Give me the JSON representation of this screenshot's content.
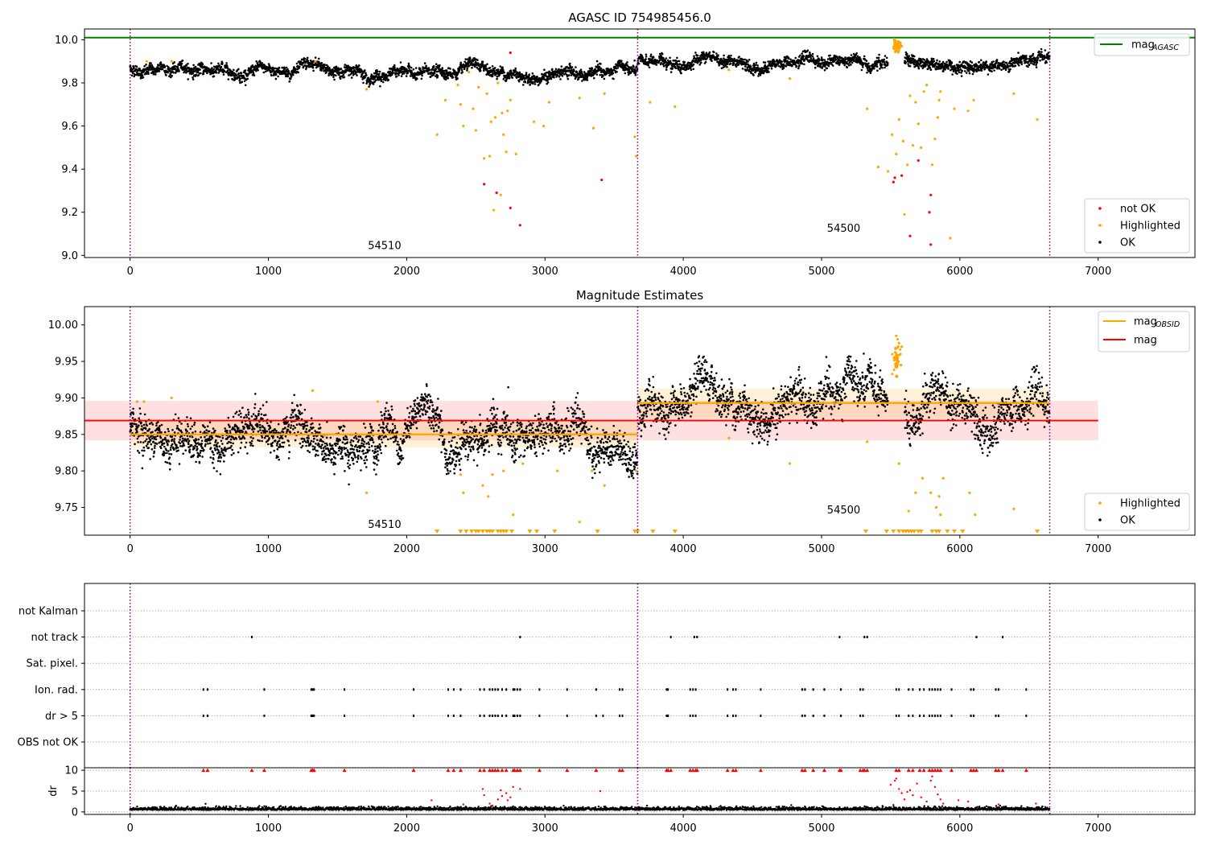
{
  "chart_data": [
    {
      "type": "scatter",
      "title": "AGASC ID 754985456.0",
      "xlabel": "",
      "ylabel": "",
      "xlim": [
        -330,
        7700
      ],
      "ylim": [
        8.99,
        10.05
      ],
      "xticks": [
        "0",
        "1000",
        "2000",
        "3000",
        "4000",
        "5000",
        "6000",
        "7000"
      ],
      "yticks": [
        "9.0",
        "9.2",
        "9.4",
        "9.6",
        "9.8",
        "10.0"
      ],
      "ytick_values": [
        9.0,
        9.2,
        9.4,
        9.6,
        9.8,
        10.0
      ],
      "vlines": [
        0,
        3670,
        6650
      ],
      "mag_agasc": 10.01,
      "obsid_labels": [
        {
          "text": "54510",
          "x": 1840,
          "y": 9.03
        },
        {
          "text": "54500",
          "x": 5160,
          "y": 9.11
        }
      ],
      "segments": [
        {
          "x0": 0,
          "x1": 3670,
          "start": 9.865,
          "end": 9.835,
          "sd": 0.012
        },
        {
          "x0": 3670,
          "x1": 6650,
          "start": 9.9,
          "end": 9.885,
          "sd": 0.012
        }
      ],
      "bumps": [
        {
          "x": 5540,
          "width": 60,
          "height": 0.08
        }
      ],
      "highlighted": [
        [
          2220,
          9.56
        ],
        [
          2280,
          9.72
        ],
        [
          2370,
          9.79
        ],
        [
          2390,
          9.7
        ],
        [
          2410,
          9.6
        ],
        [
          2450,
          9.85
        ],
        [
          2480,
          9.68
        ],
        [
          2500,
          9.58
        ],
        [
          2520,
          9.78
        ],
        [
          2560,
          9.45
        ],
        [
          2580,
          9.75
        ],
        [
          2600,
          9.46
        ],
        [
          2610,
          9.62
        ],
        [
          2630,
          9.21
        ],
        [
          2640,
          9.64
        ],
        [
          2660,
          9.8
        ],
        [
          2680,
          9.28
        ],
        [
          2690,
          9.66
        ],
        [
          2700,
          9.56
        ],
        [
          2720,
          9.48
        ],
        [
          2730,
          9.67
        ],
        [
          2750,
          9.72
        ],
        [
          2790,
          9.47
        ],
        [
          2920,
          9.62
        ],
        [
          2990,
          9.6
        ],
        [
          3030,
          9.71
        ],
        [
          3250,
          9.73
        ],
        [
          3350,
          9.59
        ],
        [
          3430,
          9.75
        ],
        [
          3650,
          9.55
        ],
        [
          3660,
          9.46
        ],
        [
          3760,
          9.71
        ],
        [
          3940,
          9.69
        ],
        [
          4330,
          9.86
        ],
        [
          4770,
          9.82
        ],
        [
          5330,
          9.68
        ],
        [
          5410,
          9.41
        ],
        [
          5480,
          9.39
        ],
        [
          5510,
          9.56
        ],
        [
          5540,
          9.47
        ],
        [
          5560,
          9.63
        ],
        [
          5590,
          9.53
        ],
        [
          5600,
          9.19
        ],
        [
          5620,
          9.42
        ],
        [
          5640,
          9.74
        ],
        [
          5660,
          9.51
        ],
        [
          5680,
          9.71
        ],
        [
          5700,
          9.61
        ],
        [
          5720,
          9.5
        ],
        [
          5740,
          9.76
        ],
        [
          5760,
          9.79
        ],
        [
          5800,
          9.42
        ],
        [
          5820,
          9.54
        ],
        [
          5840,
          9.64
        ],
        [
          5850,
          9.72
        ],
        [
          5860,
          9.76
        ],
        [
          5930,
          9.08
        ],
        [
          5960,
          9.68
        ],
        [
          6060,
          9.67
        ],
        [
          6100,
          9.72
        ],
        [
          6390,
          9.75
        ],
        [
          6560,
          9.63
        ],
        [
          1710,
          9.77
        ],
        [
          1340,
          9.9
        ],
        [
          300,
          9.9
        ],
        [
          120,
          9.9
        ],
        [
          5560,
          9.97
        ],
        [
          5570,
          9.98
        ],
        [
          5545,
          9.96
        ],
        [
          5580,
          9.97
        ]
      ],
      "not_ok": [
        [
          2560,
          9.33
        ],
        [
          2650,
          9.29
        ],
        [
          2750,
          9.22
        ],
        [
          2820,
          9.14
        ],
        [
          3410,
          9.35
        ],
        [
          5520,
          9.34
        ],
        [
          5530,
          9.36
        ],
        [
          5580,
          9.37
        ],
        [
          5640,
          9.09
        ],
        [
          5700,
          9.44
        ],
        [
          5780,
          9.2
        ],
        [
          5790,
          9.28
        ],
        [
          5790,
          9.05
        ],
        [
          2750,
          9.94
        ]
      ],
      "legend": [
        {
          "label": "mag",
          "sub": "AGASC",
          "style": "line",
          "color": "#008000"
        }
      ],
      "legend2": [
        {
          "label": "not OK",
          "color": "#ff0000"
        },
        {
          "label": "Highlighted",
          "color": "#ffa500"
        },
        {
          "label": "OK",
          "color": "#000000"
        }
      ]
    },
    {
      "type": "scatter",
      "title": "Magnitude Estimates",
      "xlabel": "",
      "ylabel": "",
      "xlim": [
        -330,
        7700
      ],
      "ylim": [
        9.712,
        10.025
      ],
      "xticks": [
        "0",
        "1000",
        "2000",
        "3000",
        "4000",
        "5000",
        "6000",
        "7000"
      ],
      "yticks": [
        "9.75",
        "9.80",
        "9.85",
        "9.90",
        "9.95",
        "10.00"
      ],
      "ytick_values": [
        9.75,
        9.8,
        9.85,
        9.9,
        9.95,
        10.0
      ],
      "vlines": [
        0,
        3670,
        6650
      ],
      "mag": 9.869,
      "mag_band": [
        9.842,
        9.896
      ],
      "mag_band_x": [
        -330,
        7000
      ],
      "mag_obsid": [
        {
          "x0": 0,
          "x1": 3670,
          "value": 9.85,
          "band": [
            9.832,
            9.868
          ]
        },
        {
          "x0": 3670,
          "x1": 6650,
          "value": 9.893,
          "band": [
            9.873,
            9.913
          ]
        }
      ],
      "obsid_labels": [
        {
          "text": "54510",
          "x": 1840,
          "y": 9.722
        },
        {
          "text": "54500",
          "x": 5160,
          "y": 9.742
        }
      ],
      "segments": [
        {
          "x0": 0,
          "x1": 3670,
          "start": 9.86,
          "end": 9.835,
          "sd": 0.012
        },
        {
          "x0": 3670,
          "x1": 6650,
          "start": 9.893,
          "end": 9.885,
          "sd": 0.013
        }
      ],
      "bumps": [
        {
          "x": 5540,
          "width": 60,
          "height": 0.07
        }
      ],
      "highlighted": [
        [
          1710,
          9.77
        ],
        [
          2390,
          9.795
        ],
        [
          2410,
          9.77
        ],
        [
          2550,
          9.78
        ],
        [
          2590,
          9.765
        ],
        [
          2620,
          9.795
        ],
        [
          2700,
          9.8
        ],
        [
          2770,
          9.74
        ],
        [
          2840,
          9.81
        ],
        [
          3090,
          9.8
        ],
        [
          3250,
          9.73
        ],
        [
          3340,
          9.8
        ],
        [
          3430,
          9.78
        ],
        [
          3660,
          9.8
        ],
        [
          4770,
          9.81
        ],
        [
          5560,
          9.81
        ],
        [
          5630,
          9.745
        ],
        [
          5680,
          9.77
        ],
        [
          5730,
          9.79
        ],
        [
          5790,
          9.77
        ],
        [
          5830,
          9.75
        ],
        [
          5850,
          9.765
        ],
        [
          5860,
          9.74
        ],
        [
          5880,
          9.79
        ],
        [
          6070,
          9.77
        ],
        [
          6110,
          9.74
        ],
        [
          6390,
          9.748
        ],
        [
          300,
          9.9
        ],
        [
          1320,
          9.91
        ],
        [
          1790,
          9.895
        ],
        [
          50,
          9.895
        ],
        [
          100,
          9.895
        ],
        [
          5540,
          9.985
        ],
        [
          5560,
          9.975
        ],
        [
          5570,
          9.96
        ],
        [
          5580,
          9.97
        ],
        [
          5550,
          9.95
        ],
        [
          5575,
          9.945
        ],
        [
          5330,
          9.84
        ],
        [
          4330,
          9.845
        ]
      ],
      "lower_limits": [
        2220,
        2390,
        2430,
        2470,
        2500,
        2520,
        2550,
        2580,
        2600,
        2620,
        2660,
        2680,
        2700,
        2720,
        2760,
        2890,
        2940,
        3070,
        3380,
        3650,
        3670,
        3780,
        3940,
        5320,
        5470,
        5520,
        5560,
        5590,
        5610,
        5630,
        5650,
        5670,
        5700,
        5720,
        5800,
        5830,
        5850,
        5910,
        5960,
        6020,
        6560
      ],
      "legend": [
        {
          "label": "mag",
          "sub": "OBSID",
          "style": "line",
          "color": "#ffa500"
        },
        {
          "label": "mag",
          "sub": "",
          "style": "line",
          "color": "#ff0000"
        }
      ],
      "legend2": [
        {
          "label": "Highlighted",
          "color": "#ffa500"
        },
        {
          "label": "OK",
          "color": "#000000"
        }
      ]
    },
    {
      "type": "scatter",
      "title": "",
      "xlabel": "",
      "ylabel": "",
      "xlim": [
        -330,
        7700
      ],
      "categories": [
        "not Kalman",
        "not track",
        "Sat. pixel.",
        "Ion. rad.",
        "dr > 5",
        "OBS not OK"
      ],
      "vlines": [
        0,
        3670,
        6650
      ],
      "flags": {
        "not Kalman": [],
        "not track": [
          880,
          2820,
          3910,
          4080,
          4100,
          5130,
          5310,
          5330,
          6120,
          6310
        ],
        "Sat. pixel.": [],
        "Ion. rad.": [
          530,
          560,
          970,
          1310,
          1320,
          1330,
          1550,
          2050,
          2300,
          2340,
          2390,
          2530,
          2560,
          2600,
          2620,
          2640,
          2660,
          2690,
          2720,
          2770,
          2780,
          2800,
          2820,
          2960,
          3160,
          3370,
          3540,
          3560,
          3880,
          3890,
          4050,
          4070,
          4090,
          4320,
          4360,
          4380,
          4560,
          4860,
          4880,
          4940,
          5020,
          5140,
          5280,
          5300,
          5540,
          5560,
          5630,
          5660,
          5710,
          5740,
          5780,
          5800,
          5820,
          5840,
          5860,
          5940,
          6080,
          6100,
          6260,
          6280,
          6480
        ],
        "dr > 5": [
          530,
          560,
          970,
          1310,
          1320,
          1330,
          1550,
          2050,
          2300,
          2340,
          2390,
          2530,
          2560,
          2600,
          2620,
          2640,
          2660,
          2690,
          2720,
          2770,
          2780,
          2800,
          2820,
          2960,
          3160,
          3370,
          3420,
          3540,
          3560,
          3880,
          3890,
          4050,
          4070,
          4090,
          4320,
          4360,
          4380,
          4560,
          4860,
          4880,
          4940,
          5020,
          5140,
          5280,
          5300,
          5540,
          5560,
          5630,
          5660,
          5710,
          5740,
          5780,
          5800,
          5820,
          5840,
          5860,
          5940,
          6080,
          6100,
          6260,
          6280,
          6480
        ],
        "OBS not OK": []
      }
    },
    {
      "type": "scatter",
      "title": "",
      "xlabel": "",
      "ylabel": "dr",
      "xlim": [
        -330,
        7700
      ],
      "ylim": [
        -0.6,
        10.6
      ],
      "xticks": [
        "0",
        "1000",
        "2000",
        "3000",
        "4000",
        "5000",
        "6000",
        "7000"
      ],
      "yticks": [
        "0",
        "5",
        "10"
      ],
      "ytick_values": [
        0,
        5,
        10
      ],
      "vlines": [
        0,
        3670,
        6650
      ],
      "baseline_mean": 0.6,
      "clipped_at_10": [
        530,
        560,
        880,
        970,
        1310,
        1320,
        1330,
        1550,
        2050,
        2300,
        2340,
        2390,
        2530,
        2560,
        2600,
        2620,
        2640,
        2660,
        2690,
        2720,
        2770,
        2780,
        2800,
        2820,
        2960,
        3160,
        3370,
        3540,
        3560,
        3880,
        3890,
        3910,
        4050,
        4070,
        4090,
        4100,
        4320,
        4360,
        4380,
        4560,
        4860,
        4880,
        4940,
        5020,
        5130,
        5140,
        5280,
        5300,
        5310,
        5330,
        5540,
        5560,
        5630,
        5660,
        5710,
        5740,
        5780,
        5800,
        5820,
        5840,
        5860,
        5940,
        6080,
        6100,
        6120,
        6260,
        6280,
        6310,
        6480
      ],
      "outliers": [
        [
          2550,
          5.5
        ],
        [
          2560,
          4.0
        ],
        [
          2600,
          2.0
        ],
        [
          2620,
          1.5
        ],
        [
          2660,
          3.0
        ],
        [
          2680,
          5.2
        ],
        [
          2690,
          3.8
        ],
        [
          2720,
          4.5
        ],
        [
          2730,
          2.8
        ],
        [
          2750,
          3.5
        ],
        [
          2770,
          6.0
        ],
        [
          2820,
          5.5
        ],
        [
          2180,
          2.8
        ],
        [
          2410,
          1.8
        ],
        [
          3400,
          5.0
        ],
        [
          5500,
          6.5
        ],
        [
          5530,
          7.5
        ],
        [
          5540,
          8.0
        ],
        [
          5560,
          5.5
        ],
        [
          5580,
          4.5
        ],
        [
          5600,
          3.0
        ],
        [
          5620,
          4.8
        ],
        [
          5640,
          5.2
        ],
        [
          5660,
          4.0
        ],
        [
          5690,
          6.8
        ],
        [
          5720,
          3.5
        ],
        [
          5760,
          2.5
        ],
        [
          5790,
          7.5
        ],
        [
          5800,
          8.5
        ],
        [
          5820,
          6.0
        ],
        [
          5840,
          4.2
        ],
        [
          5860,
          3.0
        ],
        [
          5880,
          2.0
        ],
        [
          5990,
          2.8
        ],
        [
          6060,
          2.5
        ],
        [
          6280,
          1.8
        ],
        [
          6550,
          2.0
        ]
      ]
    }
  ]
}
